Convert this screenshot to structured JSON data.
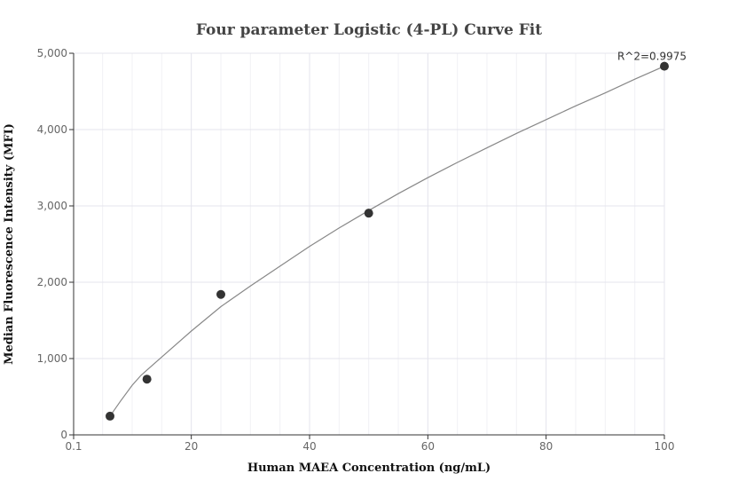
{
  "chart_data": {
    "type": "scatter",
    "title": "Four parameter Logistic (4-PL) Curve Fit",
    "xlabel": "Human MAEA Concentration (ng/mL)",
    "ylabel": "Median Fluorescence Intensity (MFI)",
    "xlim": [
      0.1,
      100
    ],
    "ylim": [
      0,
      5000
    ],
    "x_ticks": [
      0.1,
      20,
      40,
      60,
      80,
      100
    ],
    "x_tick_labels": [
      "0.1",
      "20",
      "40",
      "60",
      "80",
      "100"
    ],
    "y_ticks": [
      0,
      1000,
      2000,
      3000,
      4000,
      5000
    ],
    "y_tick_labels": [
      "0",
      "1,000",
      "2,000",
      "3,000",
      "4,000",
      "5,000"
    ],
    "grid": true,
    "series": [
      {
        "x": [
          6.25,
          12.5,
          25,
          50,
          100
        ],
        "y": [
          245,
          730,
          1840,
          2905,
          4830
        ]
      }
    ],
    "fit_curve": {
      "x": [
        6.25,
        8,
        10,
        11.5,
        12.5,
        15,
        20,
        25,
        30,
        35,
        40,
        45,
        50,
        55,
        60,
        65,
        70,
        75,
        80,
        85,
        90,
        95,
        100
      ],
      "y": [
        245,
        440,
        650,
        780,
        850,
        1020,
        1360,
        1680,
        1950,
        2210,
        2470,
        2710,
        2940,
        3160,
        3370,
        3570,
        3760,
        3950,
        4130,
        4310,
        4480,
        4660,
        4830
      ]
    },
    "annotation": {
      "text": "R^2=0.9975",
      "x": 100,
      "y": 4830
    }
  }
}
